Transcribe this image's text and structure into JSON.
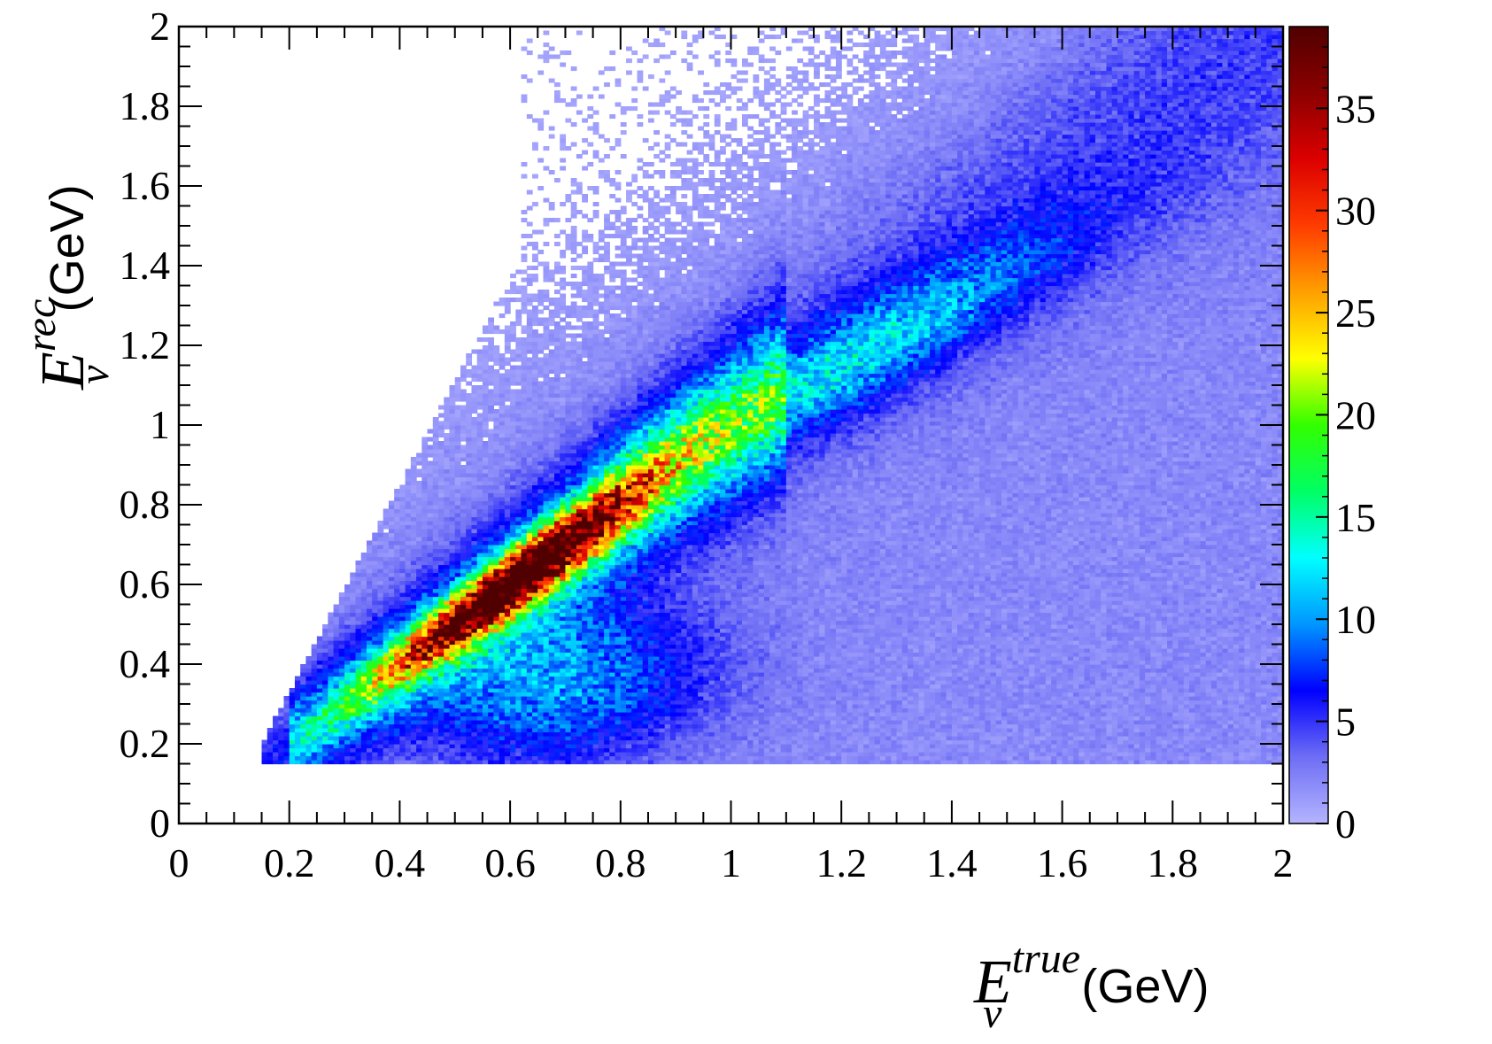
{
  "chart_data": {
    "type": "heatmap",
    "title": "",
    "xlabel": {
      "symbol": "E",
      "superscript": "true",
      "subscript": "ν",
      "unit": "(GeV)"
    },
    "ylabel": {
      "symbol": "E",
      "superscript": "rec",
      "subscript": "ν",
      "unit": "(GeV)"
    },
    "xlim": [
      0,
      2
    ],
    "ylim": [
      0,
      2
    ],
    "x_ticks": [
      "0",
      "0.2",
      "0.4",
      "0.6",
      "0.8",
      "1",
      "1.2",
      "1.4",
      "1.6",
      "1.8",
      "2"
    ],
    "y_ticks": [
      "0",
      "0.2",
      "0.4",
      "0.6",
      "0.8",
      "1",
      "1.2",
      "1.4",
      "1.6",
      "1.8",
      "2"
    ],
    "colorbar": {
      "range": [
        0,
        39
      ],
      "ticks": [
        "0",
        "5",
        "10",
        "15",
        "20",
        "25",
        "30",
        "35"
      ],
      "colormap": [
        "#b4b4ff",
        "#6e6ef5",
        "#0000ff",
        "#0096ff",
        "#00ffff",
        "#00ff64",
        "#32ff00",
        "#ffff00",
        "#ffa000",
        "#ff3c00",
        "#dc0000",
        "#8c0000",
        "#500000"
      ]
    },
    "binning": {
      "x_bins": 200,
      "y_bins": 200,
      "x_min": 0.15,
      "y_min": 0.15
    },
    "features": {
      "main_ridge": {
        "x_from": 0.15,
        "x_to": 1.05,
        "slope": 1.0,
        "peak_count": 38,
        "peak_x": 0.62,
        "peak_y": 0.62
      },
      "extension_ridge": {
        "x_from": 0.85,
        "x_to": 1.6,
        "slope": 0.75,
        "peak_count": 8
      },
      "lower_band": {
        "center_x": 0.7,
        "center_y": 0.35,
        "peak_count": 8
      },
      "background_count": 2
    }
  }
}
